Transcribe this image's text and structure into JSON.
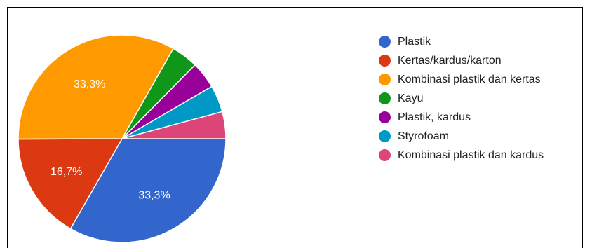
{
  "chart_data": {
    "type": "pie",
    "title": "",
    "slices": [
      {
        "label": "Plastik",
        "value": 33.3,
        "color": "#3366cc",
        "data_label": "33,3%"
      },
      {
        "label": "Kertas/kardus/karton",
        "value": 16.7,
        "color": "#dc3912",
        "data_label": "16,7%"
      },
      {
        "label": "Kombinasi plastik dan kertas",
        "value": 33.3,
        "color": "#ff9900",
        "data_label": "33,3%"
      },
      {
        "label": "Kayu",
        "value": 4.2,
        "color": "#109618",
        "data_label": ""
      },
      {
        "label": "Plastik, kardus",
        "value": 4.2,
        "color": "#990099",
        "data_label": ""
      },
      {
        "label": "Styrofoam",
        "value": 4.2,
        "color": "#0099c6",
        "data_label": ""
      },
      {
        "label": "Kombinasi plastik dan kardus",
        "value": 4.2,
        "color": "#dd4477",
        "data_label": ""
      }
    ],
    "legend_position": "right"
  }
}
